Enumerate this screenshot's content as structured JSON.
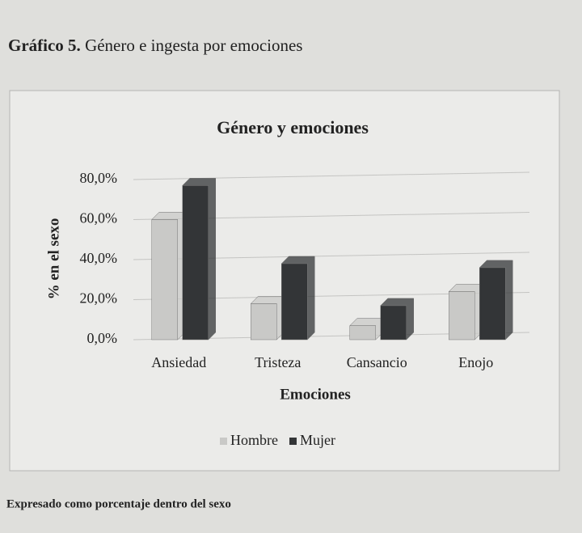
{
  "figure_label": "Gráfico 5.",
  "caption": "Género e ingesta por emociones",
  "note": "Expresado como porcentaje dentro del sexo",
  "chart_data": {
    "type": "bar",
    "title": "Género y emociones",
    "x_label": "Emociones",
    "y_label": "% en el sexo",
    "categories": [
      "Ansiedad",
      "Tristeza",
      "Cansancio",
      "Enojo"
    ],
    "series": [
      {
        "name": "Hombre",
        "color": "#c9c9c7",
        "values": [
          60,
          18,
          7,
          24
        ]
      },
      {
        "name": "Mujer",
        "color": "#333537",
        "values": [
          77,
          38,
          17,
          36
        ]
      }
    ],
    "ylim": [
      0,
      80
    ],
    "yticks": [
      {
        "value": 0,
        "label": "0,0%"
      },
      {
        "value": 20,
        "label": "20,0%"
      },
      {
        "value": 40,
        "label": "40,0%"
      },
      {
        "value": 60,
        "label": "60,0%"
      },
      {
        "value": 80,
        "label": "80,0%"
      }
    ],
    "grid": true,
    "legend": "bottom"
  }
}
